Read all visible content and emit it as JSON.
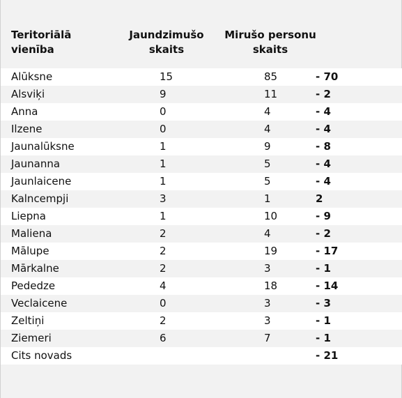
{
  "headers": {
    "unit": "Teritoriālā\n vienība",
    "born": "Jaundzimušo\nskaits",
    "dead": "Mirušo personu\nskaits"
  },
  "rows": [
    {
      "name": "Alūksne",
      "born": "15",
      "dead": "85",
      "diff": "- 70"
    },
    {
      "name": "Alsviķi",
      "born": "9",
      "dead": "11",
      "diff": "- 2"
    },
    {
      "name": "Anna",
      "born": "0",
      "dead": "4",
      "diff": "- 4"
    },
    {
      "name": "Ilzene",
      "born": "0",
      "dead": "4",
      "diff": "- 4"
    },
    {
      "name": "Jaunalūksne",
      "born": "1",
      "dead": "9",
      "diff": "- 8"
    },
    {
      "name": "Jaunanna",
      "born": "1",
      "dead": "5",
      "diff": "- 4"
    },
    {
      "name": "Jaunlaicene",
      "born": "1",
      "dead": "5",
      "diff": "- 4"
    },
    {
      "name": "Kalncempji",
      "born": "3",
      "dead": "1",
      "diff": "2"
    },
    {
      "name": "Liepna",
      "born": "1",
      "dead": "10",
      "diff": "- 9"
    },
    {
      "name": "Maliena",
      "born": "2",
      "dead": "4",
      "diff": "- 2"
    },
    {
      "name": "Mālupe",
      "born": "2",
      "dead": "19",
      "diff": "- 17"
    },
    {
      "name": "Mārkalne",
      "born": "2",
      "dead": "3",
      "diff": "- 1"
    },
    {
      "name": "Pededze",
      "born": "4",
      "dead": "18",
      "diff": "- 14"
    },
    {
      "name": "Veclaicene",
      "born": "0",
      "dead": "3",
      "diff": "- 3"
    },
    {
      "name": "Zeltiņi",
      "born": "2",
      "dead": "3",
      "diff": "- 1"
    },
    {
      "name": "Ziemeri",
      "born": "6",
      "dead": "7",
      "diff": "- 1"
    },
    {
      "name": "Cits novads",
      "born": "",
      "dead": "",
      "diff": "- 21"
    }
  ]
}
